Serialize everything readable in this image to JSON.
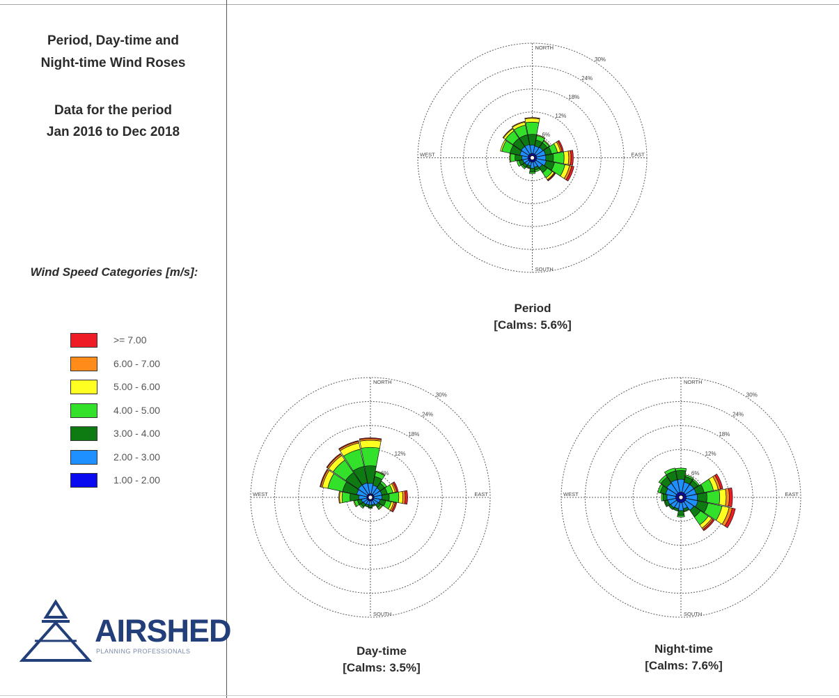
{
  "left_panel": {
    "title_lines": [
      "Period, Day-time and",
      "Night-time Wind Roses"
    ],
    "subtitle_lines": [
      "Data for the period",
      "Jan 2016 to Dec 2018"
    ],
    "legend_heading": "Wind Speed Categories [m/s]:",
    "logo": {
      "word": "AIRSHED",
      "tagline": "PLANNING PROFESSIONALS",
      "color": "#233f7a"
    }
  },
  "chart_data": [
    {
      "type": "wind-rose",
      "title": "Period",
      "subtitle": "[Calms: 5.6%]",
      "calms_percent": 5.6,
      "directions": [
        "N",
        "NNE",
        "NE",
        "ENE",
        "E",
        "ESE",
        "SE",
        "SSE",
        "S",
        "SSW",
        "SW",
        "WSW",
        "W",
        "WNW",
        "NW",
        "NNW"
      ],
      "compass_labels": {
        "N": "NORTH",
        "E": "EAST",
        "S": "SOUTH",
        "W": "WEST"
      },
      "radial_rings_percent": [
        6,
        12,
        18,
        24,
        30
      ],
      "ring_labels": [
        "6%",
        "12%",
        "18%",
        "24%",
        "30%"
      ],
      "speed_categories": [
        "1.00 - 2.00",
        "2.00 - 3.00",
        "3.00 - 4.00",
        "4.00 - 5.00",
        "5.00 - 6.00",
        "6.00 - 7.00",
        ">= 7.00"
      ],
      "frequencies_percent": [
        [
          0.6,
          2.2,
          2.8,
          3.2,
          1.0,
          0.2,
          0.0
        ],
        [
          0.6,
          2.0,
          1.6,
          1.2,
          0.2,
          0.0,
          0.0
        ],
        [
          0.6,
          2.2,
          1.4,
          0.6,
          0.2,
          0.0,
          0.0
        ],
        [
          0.6,
          2.4,
          1.6,
          1.6,
          0.8,
          0.4,
          0.4
        ],
        [
          0.6,
          2.4,
          2.0,
          2.8,
          1.2,
          0.6,
          0.6
        ],
        [
          0.6,
          2.6,
          2.2,
          2.8,
          1.2,
          0.6,
          0.6
        ],
        [
          0.6,
          2.0,
          1.6,
          1.6,
          0.6,
          0.2,
          0.2
        ],
        [
          0.6,
          1.4,
          0.8,
          0.4,
          0.0,
          0.0,
          0.0
        ],
        [
          0.6,
          1.6,
          1.0,
          0.4,
          0.0,
          0.0,
          0.0
        ],
        [
          0.6,
          1.0,
          0.6,
          0.2,
          0.0,
          0.0,
          0.0
        ],
        [
          0.6,
          1.2,
          0.8,
          0.4,
          0.0,
          0.0,
          0.0
        ],
        [
          0.6,
          1.4,
          1.0,
          0.6,
          0.0,
          0.0,
          0.0
        ],
        [
          0.6,
          1.6,
          1.8,
          1.2,
          0.2,
          0.0,
          0.0
        ],
        [
          0.6,
          2.2,
          2.6,
          2.2,
          0.4,
          0.0,
          0.0
        ],
        [
          0.6,
          2.4,
          2.6,
          2.4,
          0.6,
          0.2,
          0.0
        ],
        [
          0.6,
          2.4,
          2.6,
          2.6,
          0.8,
          0.2,
          0.0
        ]
      ]
    },
    {
      "type": "wind-rose",
      "title": "Day-time",
      "subtitle": "[Calms: 3.5%]",
      "calms_percent": 3.5,
      "directions": [
        "N",
        "NNE",
        "NE",
        "ENE",
        "E",
        "ESE",
        "SE",
        "SSE",
        "S",
        "SSW",
        "SW",
        "WSW",
        "W",
        "WNW",
        "NW",
        "NNW"
      ],
      "compass_labels": {
        "N": "NORTH",
        "E": "EAST",
        "S": "SOUTH",
        "W": "WEST"
      },
      "radial_rings_percent": [
        6,
        12,
        18,
        24,
        30
      ],
      "ring_labels": [
        "6%",
        "12%",
        "18%",
        "24%",
        "30%"
      ],
      "speed_categories": [
        "1.00 - 2.00",
        "2.00 - 3.00",
        "3.00 - 4.00",
        "4.00 - 5.00",
        "5.00 - 6.00",
        "6.00 - 7.00",
        ">= 7.00"
      ],
      "frequencies_percent": [
        [
          0.4,
          2.6,
          4.4,
          4.6,
          1.8,
          0.4,
          0.2
        ],
        [
          0.4,
          2.2,
          2.2,
          1.2,
          0.2,
          0.0,
          0.0
        ],
        [
          0.4,
          2.0,
          1.4,
          0.6,
          0.0,
          0.0,
          0.0
        ],
        [
          0.4,
          2.0,
          1.4,
          1.4,
          0.6,
          0.4,
          0.4
        ],
        [
          0.4,
          2.0,
          1.8,
          2.4,
          1.0,
          0.6,
          0.6
        ],
        [
          0.4,
          1.6,
          1.4,
          1.4,
          0.6,
          0.4,
          0.4
        ],
        [
          0.4,
          1.4,
          0.8,
          0.4,
          0.2,
          0.0,
          0.0
        ],
        [
          0.4,
          1.0,
          0.4,
          0.0,
          0.0,
          0.0,
          0.0
        ],
        [
          0.4,
          1.0,
          0.6,
          0.2,
          0.0,
          0.0,
          0.0
        ],
        [
          0.4,
          1.0,
          0.6,
          0.0,
          0.0,
          0.0,
          0.0
        ],
        [
          0.4,
          1.2,
          0.8,
          0.4,
          0.0,
          0.0,
          0.0
        ],
        [
          0.4,
          1.4,
          1.0,
          0.8,
          0.2,
          0.0,
          0.0
        ],
        [
          0.4,
          2.0,
          2.2,
          2.0,
          0.6,
          0.2,
          0.0
        ],
        [
          0.4,
          2.6,
          3.6,
          3.8,
          1.4,
          0.4,
          0.2
        ],
        [
          0.4,
          2.8,
          3.8,
          3.8,
          1.4,
          0.4,
          0.2
        ],
        [
          0.4,
          2.8,
          4.2,
          4.4,
          1.6,
          0.4,
          0.2
        ]
      ]
    },
    {
      "type": "wind-rose",
      "title": "Night-time",
      "subtitle": "[Calms: 7.6%]",
      "calms_percent": 7.6,
      "directions": [
        "N",
        "NNE",
        "NE",
        "ENE",
        "E",
        "ESE",
        "SE",
        "SSE",
        "S",
        "SSW",
        "SW",
        "WSW",
        "W",
        "WNW",
        "NW",
        "NNW"
      ],
      "compass_labels": {
        "N": "NORTH",
        "E": "EAST",
        "S": "SOUTH",
        "W": "WEST"
      },
      "radial_rings_percent": [
        6,
        12,
        18,
        24,
        30
      ],
      "ring_labels": [
        "6%",
        "12%",
        "18%",
        "24%",
        "30%"
      ],
      "speed_categories": [
        "1.00 - 2.00",
        "2.00 - 3.00",
        "3.00 - 4.00",
        "4.00 - 5.00",
        "5.00 - 6.00",
        "6.00 - 7.00",
        ">= 7.00"
      ],
      "frequencies_percent": [
        [
          0.8,
          3.2,
          2.2,
          0.6,
          0.0,
          0.0,
          0.0
        ],
        [
          0.8,
          2.6,
          1.4,
          0.4,
          0.0,
          0.0,
          0.0
        ],
        [
          0.8,
          2.6,
          1.2,
          0.4,
          0.0,
          0.0,
          0.0
        ],
        [
          0.8,
          2.6,
          2.0,
          2.4,
          1.2,
          0.6,
          0.6
        ],
        [
          0.8,
          2.8,
          2.4,
          3.2,
          1.6,
          0.8,
          0.8
        ],
        [
          0.8,
          3.0,
          2.6,
          3.6,
          1.8,
          0.8,
          0.8
        ],
        [
          0.8,
          2.6,
          2.0,
          2.4,
          1.0,
          0.4,
          0.4
        ],
        [
          0.8,
          1.6,
          0.6,
          0.2,
          0.0,
          0.0,
          0.0
        ],
        [
          0.8,
          2.0,
          1.2,
          0.4,
          0.0,
          0.0,
          0.0
        ],
        [
          0.8,
          1.6,
          0.6,
          0.0,
          0.0,
          0.0,
          0.0
        ],
        [
          0.8,
          1.8,
          0.6,
          0.0,
          0.0,
          0.0,
          0.0
        ],
        [
          0.8,
          2.0,
          0.8,
          0.2,
          0.0,
          0.0,
          0.0
        ],
        [
          0.8,
          2.2,
          1.0,
          0.4,
          0.0,
          0.0,
          0.0
        ],
        [
          0.8,
          2.6,
          1.4,
          0.6,
          0.0,
          0.0,
          0.0
        ],
        [
          0.8,
          3.0,
          1.8,
          0.6,
          0.0,
          0.0,
          0.0
        ],
        [
          0.8,
          3.2,
          2.2,
          0.8,
          0.0,
          0.0,
          0.0
        ]
      ]
    }
  ],
  "legend": [
    {
      "label": ">= 7.00",
      "color": "#ee1c24"
    },
    {
      "label": "6.00 - 7.00",
      "color": "#ff8c1a"
    },
    {
      "label": "5.00 - 6.00",
      "color": "#ffff22"
    },
    {
      "label": "4.00 - 5.00",
      "color": "#33e02a"
    },
    {
      "label": "3.00 - 4.00",
      "color": "#0e7a12"
    },
    {
      "label": "2.00 - 3.00",
      "color": "#1e90ff"
    },
    {
      "label": "1.00 - 2.00",
      "color": "#0a0af0"
    }
  ]
}
